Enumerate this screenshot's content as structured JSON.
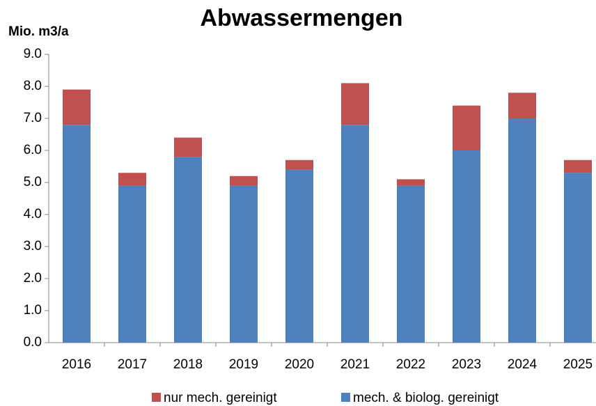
{
  "chart_data": {
    "type": "stacked_bar",
    "title": "Abwassermengen",
    "y_label": "Mio. m3/a",
    "categories": [
      "2016",
      "2017",
      "2018",
      "2019",
      "2020",
      "2021",
      "2022",
      "2023",
      "2024",
      "2025"
    ],
    "series": [
      {
        "name": "mech. & biolog. gereinigt",
        "color": "#4f81bd",
        "values": [
          6.8,
          4.9,
          5.8,
          4.9,
          5.4,
          6.8,
          4.9,
          6.0,
          7.0,
          5.3
        ]
      },
      {
        "name": "nur mech. gereinigt",
        "color": "#c0504d",
        "values": [
          1.1,
          0.4,
          0.6,
          0.3,
          0.3,
          1.3,
          0.2,
          1.4,
          0.8,
          0.4
        ]
      }
    ],
    "ylim": [
      0,
      9
    ],
    "yticks": [
      {
        "value": 0,
        "label": "0.0"
      },
      {
        "value": 1,
        "label": "1.0"
      },
      {
        "value": 2,
        "label": "2.0"
      },
      {
        "value": 3,
        "label": "3.0"
      },
      {
        "value": 4,
        "label": "4.0"
      },
      {
        "value": 5,
        "label": "5.0"
      },
      {
        "value": 6,
        "label": "6.0"
      },
      {
        "value": 7,
        "label": "7.0"
      },
      {
        "value": 8,
        "label": "8.0"
      },
      {
        "value": 9,
        "label": "9.0"
      }
    ],
    "legend": "bottom",
    "grid": false
  }
}
